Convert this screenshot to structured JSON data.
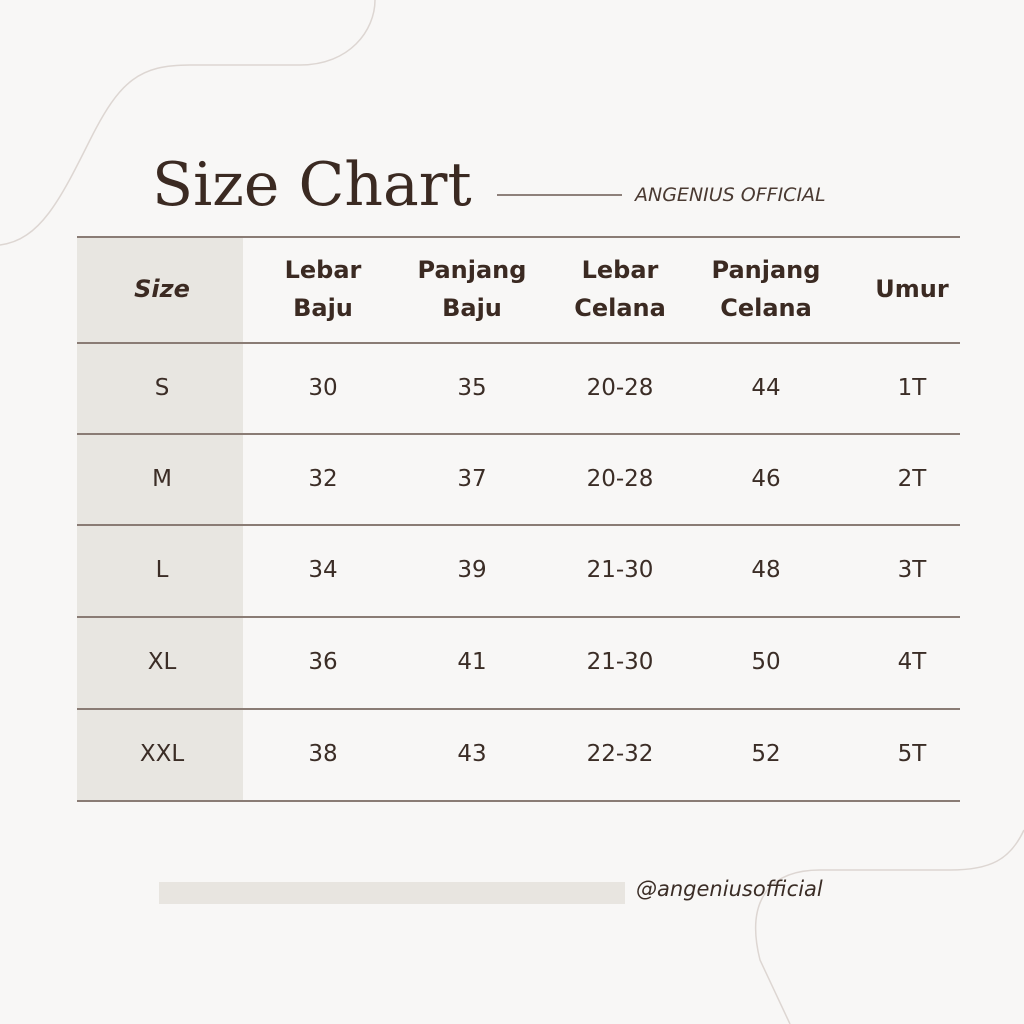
{
  "header": {
    "title": "Size Chart",
    "brand": "ANGENIUS OFFICIAL"
  },
  "table": {
    "headers": [
      [
        "Size"
      ],
      [
        "Lebar",
        "Baju"
      ],
      [
        "Panjang",
        "Baju"
      ],
      [
        "Lebar",
        "Celana"
      ],
      [
        "Panjang",
        "Celana"
      ],
      [
        "Umur"
      ]
    ],
    "rows": [
      [
        "S",
        "30",
        "35",
        "20-28",
        "44",
        "1T"
      ],
      [
        "M",
        "32",
        "37",
        "20-28",
        "46",
        "2T"
      ],
      [
        "L",
        "34",
        "39",
        "21-30",
        "48",
        "3T"
      ],
      [
        "XL",
        "36",
        "41",
        "21-30",
        "50",
        "4T"
      ],
      [
        "XXL",
        "38",
        "43",
        "22-32",
        "52",
        "5T"
      ]
    ]
  },
  "footer": {
    "handle": "@angeniusofficial"
  }
}
